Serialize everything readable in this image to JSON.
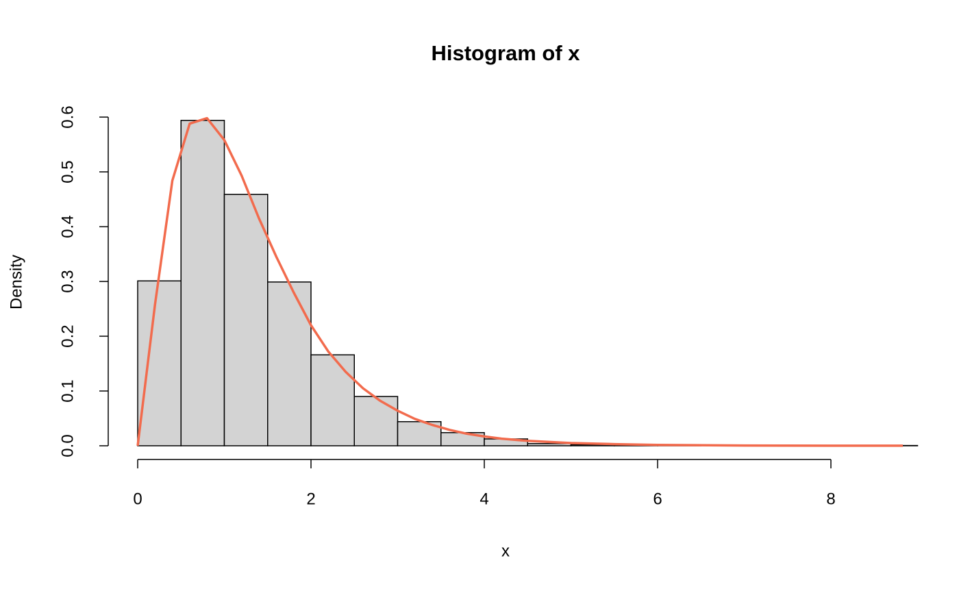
{
  "chart_data": {
    "type": "histogram",
    "title": "Histogram of x",
    "xlabel": "x",
    "ylabel": "Density",
    "bins": [
      0,
      0.5,
      1,
      1.5,
      2,
      2.5,
      3,
      3.5,
      4,
      4.5,
      5,
      5.5,
      6,
      6.5,
      7,
      7.5,
      8,
      8.5,
      9
    ],
    "values": [
      0.301,
      0.594,
      0.459,
      0.299,
      0.166,
      0.09,
      0.044,
      0.024,
      0.0125,
      0.004,
      0.002,
      0.001,
      0.001,
      0,
      0,
      0,
      0,
      0.0005
    ],
    "color": "#d3d3d3",
    "overlay": {
      "type": "line",
      "color": "#f26b4d",
      "x": [
        0,
        0.2,
        0.4,
        0.6,
        0.8,
        1.0,
        1.2,
        1.4,
        1.6,
        1.8,
        2.0,
        2.2,
        2.4,
        2.6,
        2.8,
        3.0,
        3.2,
        3.4,
        3.6,
        3.8,
        4.0,
        4.2,
        4.5,
        5,
        5.5,
        6,
        7,
        8,
        8.83
      ],
      "y": [
        0,
        0.258,
        0.484,
        0.588,
        0.598,
        0.558,
        0.493,
        0.415,
        0.345,
        0.28,
        0.22,
        0.172,
        0.135,
        0.105,
        0.082,
        0.064,
        0.049,
        0.038,
        0.029,
        0.022,
        0.017,
        0.013,
        0.009,
        0.005,
        0.003,
        0.0015,
        0.0005,
        0.0002,
        0.0001
      ]
    },
    "xlim": [
      0,
      8
    ],
    "xticks": [
      0,
      2,
      4,
      6,
      8
    ],
    "ylim": [
      0,
      0.6
    ],
    "yticks": [
      0.0,
      0.1,
      0.2,
      0.3,
      0.4,
      0.5,
      0.6
    ],
    "grid": false
  }
}
